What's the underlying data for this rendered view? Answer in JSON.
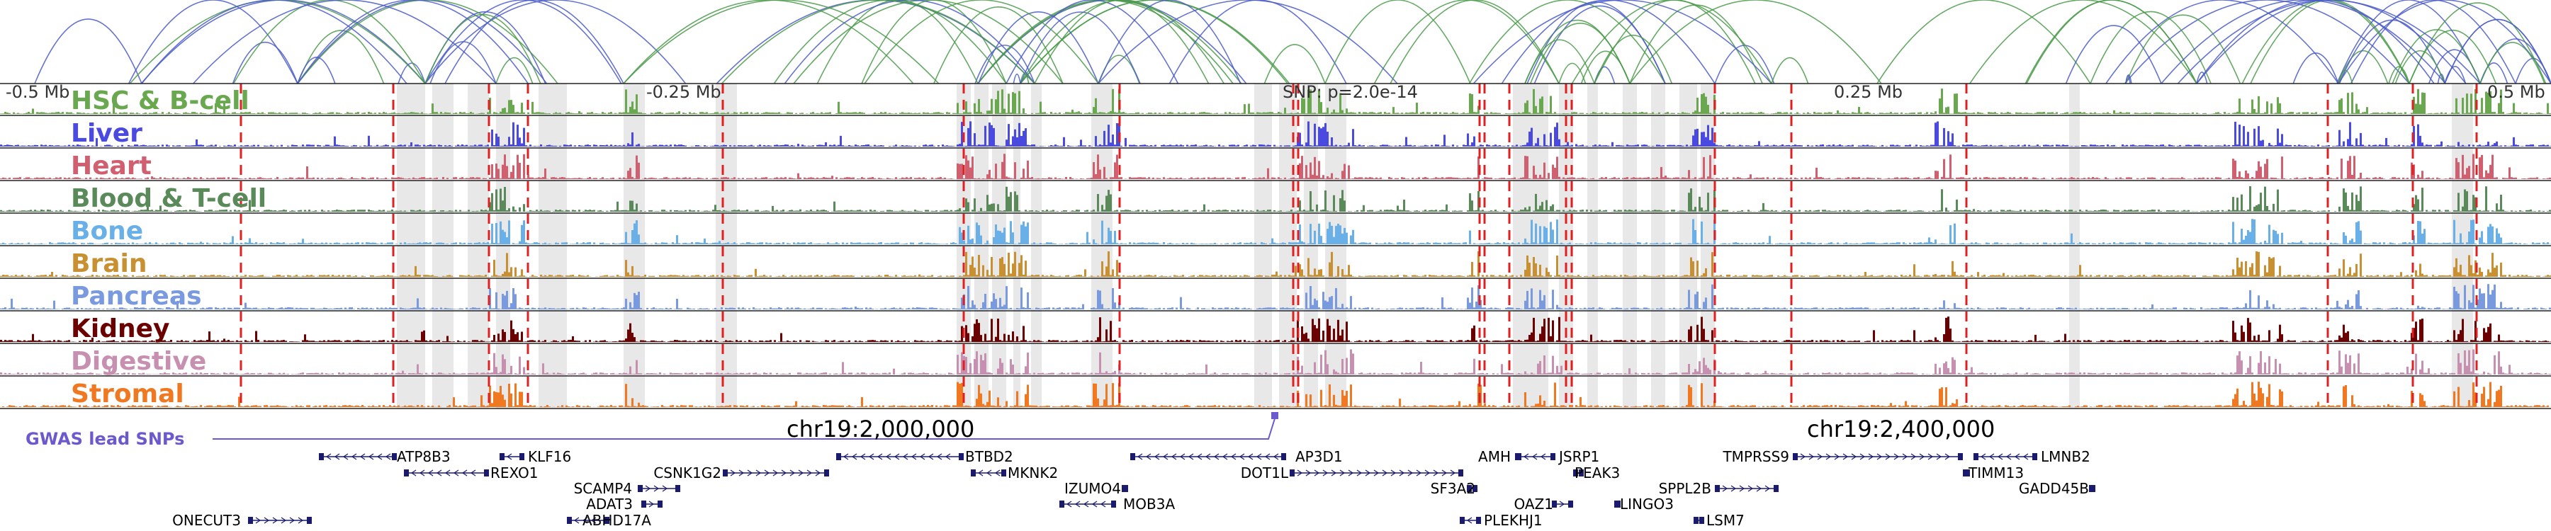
{
  "chart_data": {
    "type": "area",
    "locus": {
      "chromosome": "chr19",
      "coordinate_labels": [
        {
          "label": "chr19:2,000,000",
          "position": 2000000
        },
        {
          "label": "chr19:2,400,000",
          "position": 2400000
        }
      ],
      "relative_axis": [
        "-0.5 Mb",
        "-0.25 Mb",
        "0.25 Mb",
        "0.5 Mb"
      ],
      "lead_snp_label": "SNP: p=2.0e-14"
    },
    "tracks": [
      {
        "name": "HSC & B-cell",
        "color": "#6aa84f"
      },
      {
        "name": "Liver",
        "color": "#4a4ae0"
      },
      {
        "name": "Heart",
        "color": "#d06070"
      },
      {
        "name": "Blood & T-cell",
        "color": "#5a8a5a"
      },
      {
        "name": "Bone",
        "color": "#6ab0e8"
      },
      {
        "name": "Brain",
        "color": "#c89030"
      },
      {
        "name": "Pancreas",
        "color": "#7a9ae0"
      },
      {
        "name": "Kidney",
        "color": "#6a0000"
      },
      {
        "name": "Digestive",
        "color": "#c890b0"
      },
      {
        "name": "Stromal",
        "color": "#f07820"
      }
    ],
    "gwas_label": "GWAS lead SNPs",
    "loop_colors": [
      "#4a5ac8",
      "#4a9a4a"
    ],
    "highlight_region_color": "#e0e0e0",
    "snp_marker_color": "#e02020",
    "genes": [
      {
        "name": "ATP8B3",
        "strand": "-"
      },
      {
        "name": "KLF16",
        "strand": "-"
      },
      {
        "name": "REXO1",
        "strand": "-"
      },
      {
        "name": "SCAMP4",
        "strand": "+"
      },
      {
        "name": "CSNK1G2",
        "strand": "+"
      },
      {
        "name": "ADAT3",
        "strand": "+"
      },
      {
        "name": "ABHD17A",
        "strand": "-"
      },
      {
        "name": "ONECUT3",
        "strand": "+"
      },
      {
        "name": "BTBD2",
        "strand": "-"
      },
      {
        "name": "MKNK2",
        "strand": "-"
      },
      {
        "name": "IZUMO4",
        "strand": "+"
      },
      {
        "name": "MOB3A",
        "strand": "-"
      },
      {
        "name": "AP3D1",
        "strand": "-"
      },
      {
        "name": "DOT1L",
        "strand": "+"
      },
      {
        "name": "AMH",
        "strand": "+"
      },
      {
        "name": "SF3A2",
        "strand": "+"
      },
      {
        "name": "JSRP1",
        "strand": "-"
      },
      {
        "name": "OAZ1",
        "strand": "+"
      },
      {
        "name": "PLEKHJ1",
        "strand": "-"
      },
      {
        "name": "PEAK3",
        "strand": "-"
      },
      {
        "name": "LINGO3",
        "strand": "-"
      },
      {
        "name": "SPPL2B",
        "strand": "+"
      },
      {
        "name": "LSM7",
        "strand": "-"
      },
      {
        "name": "TMPRSS9",
        "strand": "+"
      },
      {
        "name": "TIMM13",
        "strand": "-"
      },
      {
        "name": "LMNB2",
        "strand": "-"
      },
      {
        "name": "GADD45B",
        "strand": "+"
      }
    ]
  }
}
